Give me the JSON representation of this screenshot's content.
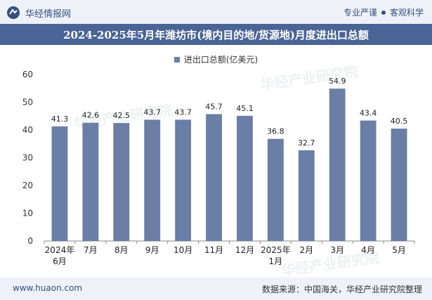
{
  "header": {
    "brand_name": "华经情报网",
    "tag1": "专业严谨",
    "tag2": "客观科学",
    "title": "2024-2025年5月年潍坊市(境内目的地/货源地)月度进出口总额"
  },
  "legend": {
    "label": "进出口总额(亿美元)"
  },
  "footer": {
    "site": "www.huaon.com",
    "source": "数据来源：中国海关，华经产业研究院整理"
  },
  "watermark": "华经产业研究院",
  "colors": {
    "bar": "#6a7ea6",
    "header_band": "#4a6496",
    "brand": "#34507f"
  },
  "chart_data": {
    "type": "bar",
    "title": "2024-2025年5月年潍坊市(境内目的地/货源地)月度进出口总额",
    "categories": [
      "2024年6月",
      "7月",
      "8月",
      "9月",
      "10月",
      "11月",
      "12月",
      "2025年1月",
      "2月",
      "3月",
      "4月",
      "5月"
    ],
    "category_lines": [
      [
        "2024年",
        "6月"
      ],
      [
        "7月"
      ],
      [
        "8月"
      ],
      [
        "9月"
      ],
      [
        "10月"
      ],
      [
        "11月"
      ],
      [
        "12月"
      ],
      [
        "2025年",
        "1月"
      ],
      [
        "2月"
      ],
      [
        "3月"
      ],
      [
        "4月"
      ],
      [
        "5月"
      ]
    ],
    "series": [
      {
        "name": "进出口总额(亿美元)",
        "values": [
          41.3,
          42.6,
          42.5,
          43.7,
          43.7,
          45.7,
          45.1,
          36.8,
          32.7,
          54.9,
          43.4,
          40.5
        ]
      }
    ],
    "ylim": [
      0,
      60
    ],
    "yticks": [
      0,
      10,
      20,
      30,
      40,
      50,
      60
    ],
    "legend_position": "top",
    "grid": false
  }
}
